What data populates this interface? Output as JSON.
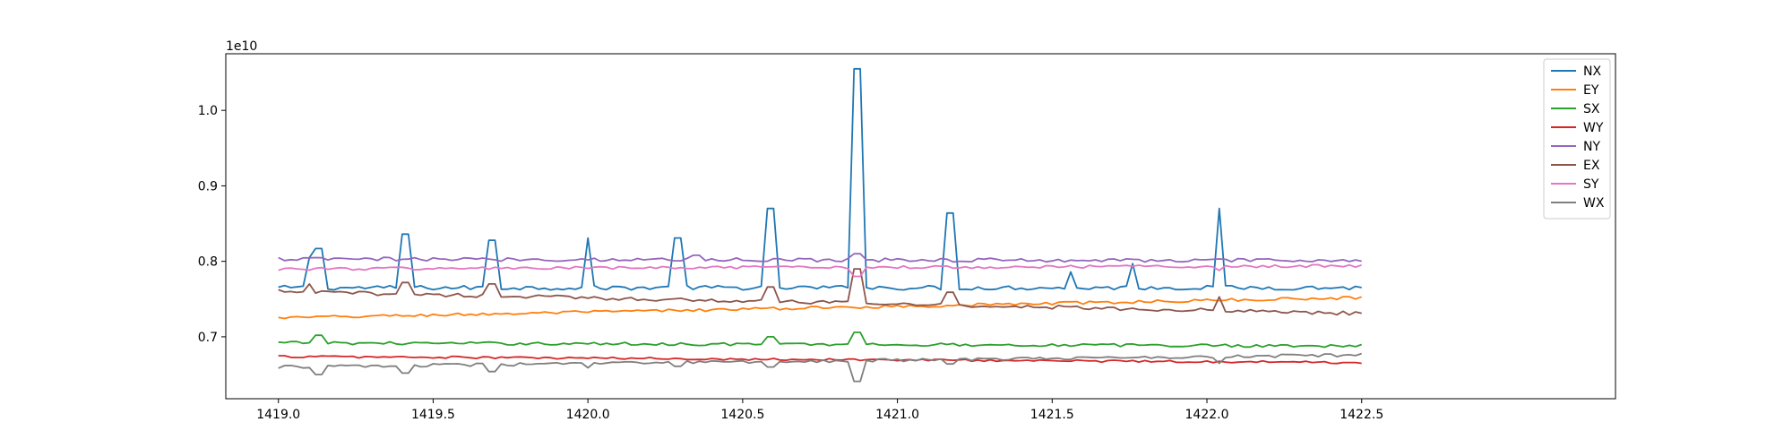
{
  "chart_data": {
    "type": "line",
    "offset_text": "1e10",
    "x_ticks": [
      "1419.0",
      "1419.5",
      "1420.0",
      "1420.5",
      "1421.0",
      "1421.5",
      "1422.0",
      "1422.5"
    ],
    "y_ticks": [
      "0.7",
      "0.8",
      "0.9",
      "1.0"
    ],
    "xlim": [
      1418.83,
      1423.32
    ],
    "ylim": [
      0.618,
      1.075
    ],
    "legend_position": "upper-right",
    "grid": false,
    "x_start": 1419.0,
    "x_end": 1422.5,
    "points_per_series": 176,
    "series": [
      {
        "name": "NX",
        "color": "#1f77b4",
        "base": 0.765,
        "trend_end": 0.765,
        "noise": 0.003,
        "spikes": [
          [
            1419.1,
            0.805
          ],
          [
            1419.13,
            0.817
          ],
          [
            1419.41,
            0.836
          ],
          [
            1419.69,
            0.828
          ],
          [
            1420.0,
            0.831
          ],
          [
            1420.29,
            0.831
          ],
          [
            1420.59,
            0.87
          ],
          [
            1420.87,
            1.055
          ],
          [
            1421.17,
            0.864
          ],
          [
            1421.56,
            0.786
          ],
          [
            1421.76,
            0.797
          ],
          [
            1422.04,
            0.87
          ]
        ]
      },
      {
        "name": "EY",
        "color": "#ff7f0e",
        "base": 0.725,
        "trend_end": 0.752,
        "noise": 0.002,
        "spikes": []
      },
      {
        "name": "SX",
        "color": "#2ca02c",
        "base": 0.692,
        "trend_end": 0.688,
        "noise": 0.002,
        "spikes": [
          [
            1419.13,
            0.702
          ],
          [
            1420.59,
            0.7
          ],
          [
            1420.87,
            0.706
          ]
        ]
      },
      {
        "name": "WY",
        "color": "#d62728",
        "base": 0.674,
        "trend_end": 0.666,
        "noise": 0.0015,
        "spikes": []
      },
      {
        "name": "NY",
        "color": "#9467bd",
        "base": 0.803,
        "trend_end": 0.801,
        "noise": 0.0025,
        "spikes": [
          [
            1420.35,
            0.808
          ],
          [
            1420.87,
            0.81
          ]
        ]
      },
      {
        "name": "EX",
        "color": "#8c564b",
        "base": 0.76,
        "trend_end": 0.731,
        "noise": 0.0025,
        "spikes": [
          [
            1419.1,
            0.77
          ],
          [
            1419.41,
            0.772
          ],
          [
            1419.69,
            0.77
          ],
          [
            1420.59,
            0.766
          ],
          [
            1420.87,
            0.79
          ],
          [
            1421.17,
            0.759
          ],
          [
            1422.04,
            0.753
          ]
        ]
      },
      {
        "name": "SY",
        "color": "#e377c2",
        "base": 0.79,
        "trend_end": 0.794,
        "noise": 0.002,
        "spikes": [
          [
            1420.87,
            0.78
          ],
          [
            1422.04,
            0.788
          ]
        ]
      },
      {
        "name": "WX",
        "color": "#7f7f7f",
        "base": 0.66,
        "trend_end": 0.676,
        "noise": 0.002,
        "spikes": [
          [
            1419.13,
            0.65
          ],
          [
            1419.41,
            0.652
          ],
          [
            1419.69,
            0.654
          ],
          [
            1420.0,
            0.659
          ],
          [
            1420.29,
            0.661
          ],
          [
            1420.59,
            0.66
          ],
          [
            1420.87,
            0.641
          ],
          [
            1421.17,
            0.664
          ],
          [
            1422.04,
            0.665
          ]
        ]
      }
    ]
  }
}
